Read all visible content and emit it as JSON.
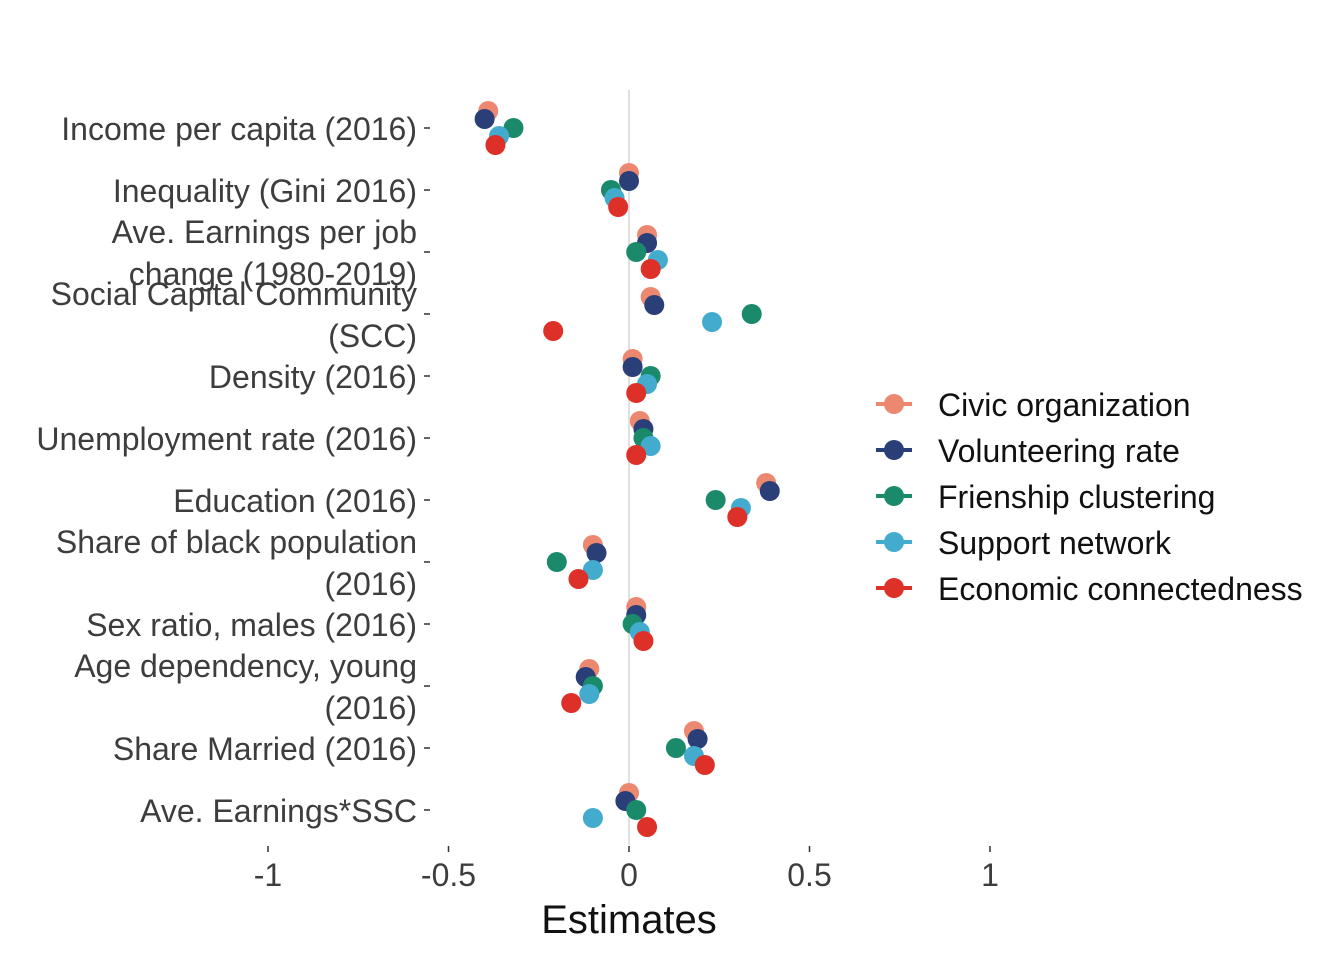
{
  "chart_data": {
    "type": "scatter",
    "xlabel": "Estimates",
    "ylabel": "",
    "xlim": [
      -1,
      1
    ],
    "x_ticks": [
      -1,
      -0.5,
      0,
      0.5,
      1
    ],
    "x_tick_labels": [
      "-1",
      "-0.5",
      "0",
      "0.5",
      "1"
    ],
    "reference_line": 0,
    "grid": false,
    "legend_position": "right",
    "categories": [
      [
        "Income per capita (2016)"
      ],
      [
        "Inequality (Gini 2016)"
      ],
      [
        "Ave. Earnings per job",
        "change (1980-2019)"
      ],
      [
        "Social Capital Community",
        "(SCC)"
      ],
      [
        "Density (2016)"
      ],
      [
        "Unemployment rate (2016)"
      ],
      [
        "Education (2016)"
      ],
      [
        "Share of black population",
        "(2016)"
      ],
      [
        "Sex ratio, males (2016)"
      ],
      [
        "Age dependency, young",
        "(2016)"
      ],
      [
        "Share Married (2016)"
      ],
      [
        "Ave. Earnings*SSC"
      ]
    ],
    "series": [
      {
        "name": "Civic organization",
        "color": "#EC8870",
        "values": [
          -0.39,
          0.0,
          0.05,
          0.06,
          0.01,
          0.03,
          0.38,
          -0.1,
          0.02,
          -0.11,
          0.18,
          0.0
        ]
      },
      {
        "name": "Volunteering rate",
        "color": "#2A3F78",
        "values": [
          -0.4,
          0.0,
          0.05,
          0.07,
          0.01,
          0.04,
          0.39,
          -0.09,
          0.02,
          -0.12,
          0.19,
          -0.01
        ]
      },
      {
        "name": "Frienship clustering",
        "color": "#1B8A6B",
        "values": [
          -0.32,
          -0.05,
          0.02,
          0.34,
          0.06,
          0.04,
          0.24,
          -0.2,
          0.01,
          -0.1,
          0.13,
          0.02
        ]
      },
      {
        "name": "Support network",
        "color": "#43ACCE",
        "values": [
          -0.36,
          -0.04,
          0.08,
          0.23,
          0.05,
          0.06,
          0.31,
          -0.1,
          0.03,
          -0.11,
          0.18,
          -0.1
        ]
      },
      {
        "name": "Economic connectedness",
        "color": "#DD3028",
        "values": [
          -0.37,
          -0.03,
          0.06,
          -0.21,
          0.02,
          0.02,
          0.3,
          -0.14,
          0.04,
          -0.16,
          0.21,
          0.05
        ]
      }
    ]
  }
}
